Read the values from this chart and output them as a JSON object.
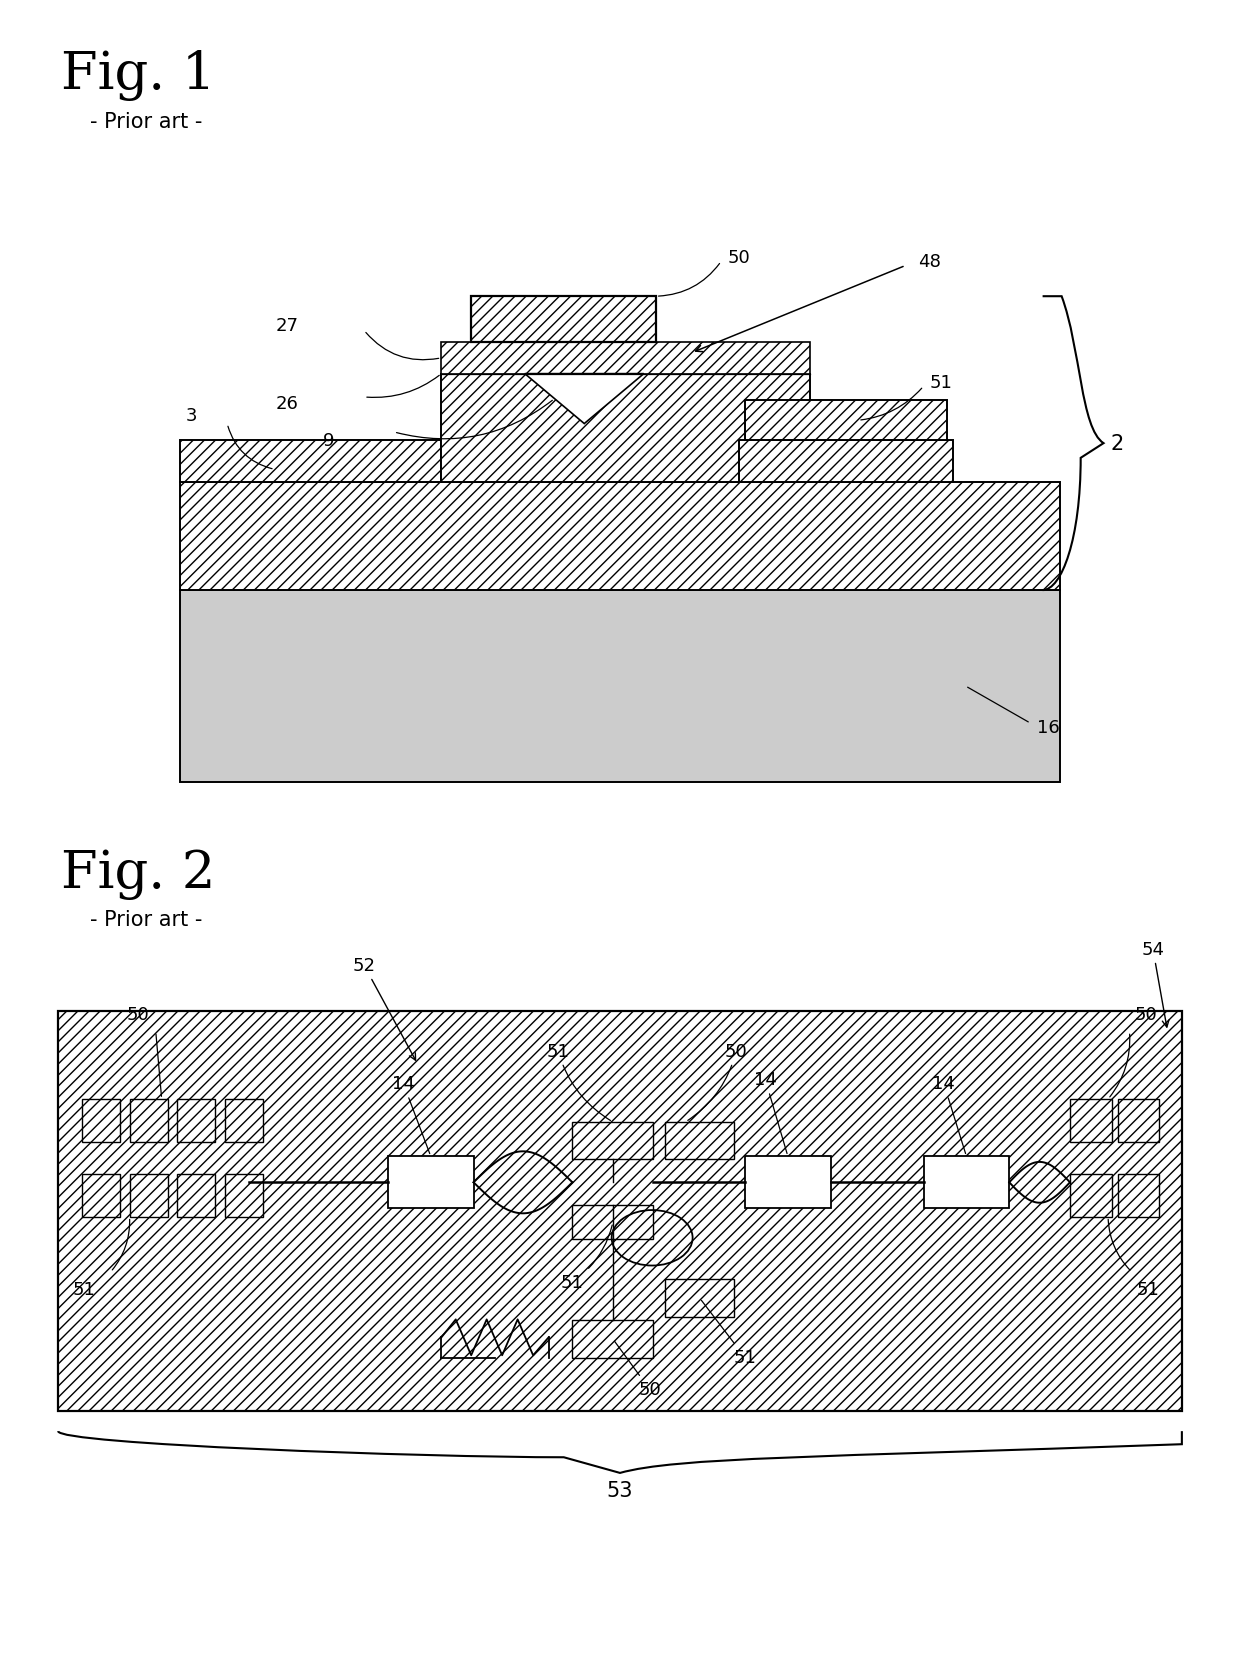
{
  "fig_title1": "Fig. 1",
  "fig_subtitle1": "- Prior art -",
  "fig_title2": "Fig. 2",
  "fig_subtitle2": "- Prior art -",
  "bg_color": "#ffffff",
  "label_fontsize": 13,
  "title_fontsize": 38,
  "subtitle_fontsize": 15
}
